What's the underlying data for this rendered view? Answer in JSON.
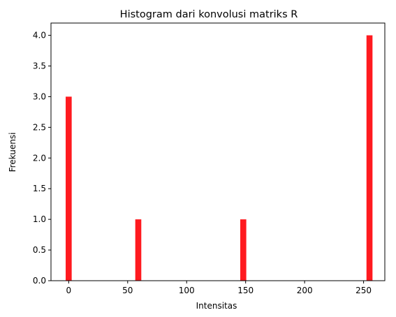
{
  "chart_data": {
    "type": "bar",
    "title": "Histogram dari konvolusi matriks R",
    "xlabel": "Intensitas",
    "ylabel": "Frekuensi",
    "xlim": [
      -15,
      268
    ],
    "ylim": [
      0,
      4.2
    ],
    "xticks": [
      0,
      50,
      100,
      150,
      200,
      250
    ],
    "xtick_labels": [
      "0",
      "50",
      "100",
      "150",
      "200",
      "250"
    ],
    "yticks": [
      0,
      0.5,
      1,
      1.5,
      2,
      2.5,
      3,
      3.5,
      4
    ],
    "ytick_labels": [
      "0.0",
      "0.5",
      "1.0",
      "1.5",
      "2.0",
      "2.5",
      "3.0",
      "3.5",
      "4.0"
    ],
    "bin_width": 5.1,
    "bars": [
      {
        "x": 0,
        "value": 3
      },
      {
        "x": 59,
        "value": 1
      },
      {
        "x": 148,
        "value": 1
      },
      {
        "x": 255,
        "value": 4
      }
    ],
    "bar_color": "#ff1a1f",
    "grid": false
  }
}
